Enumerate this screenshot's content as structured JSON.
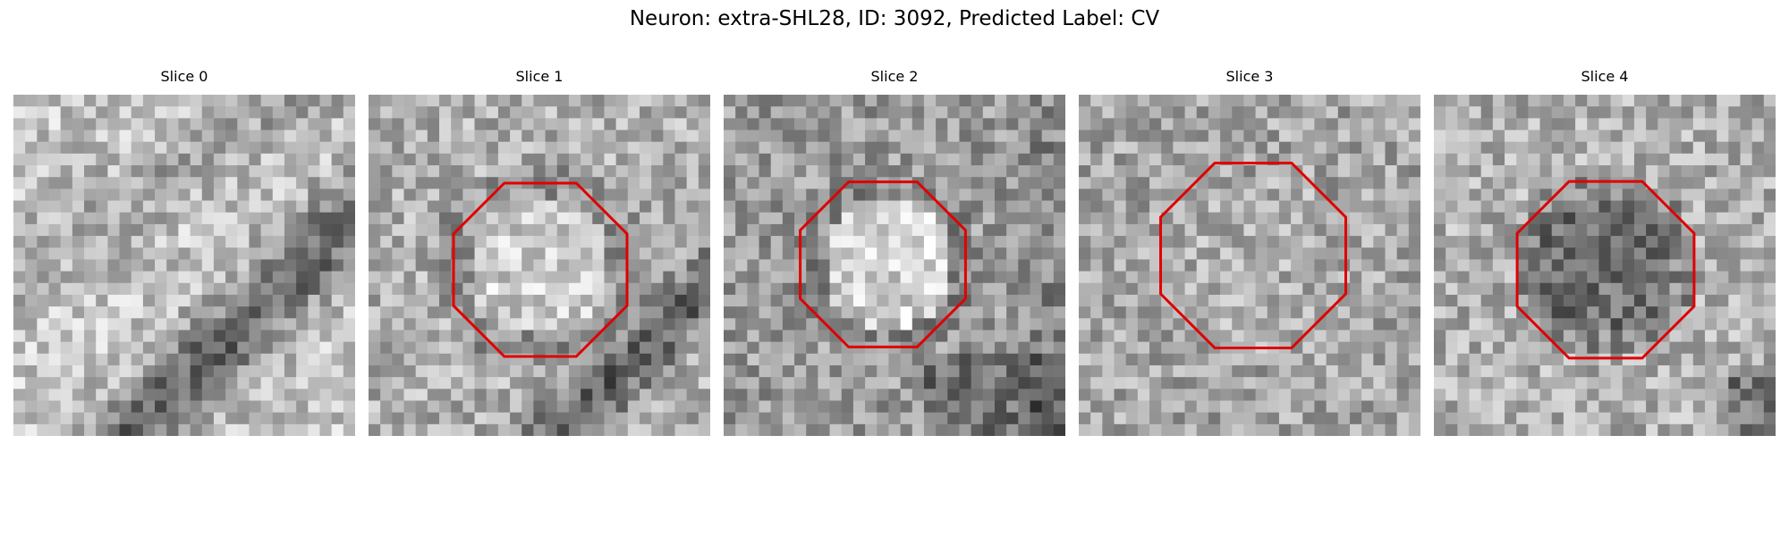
{
  "figure": {
    "title": "Neuron: extra-SHL28, ID: 3092, Predicted Label: CV"
  },
  "outline_color": "#e00000",
  "panels": [
    {
      "title": "Slice 0",
      "outline": false,
      "seed": 11,
      "features": "diagonal-dark-band"
    },
    {
      "title": "Slice 1",
      "outline": true,
      "seed": 23,
      "features": "bright-vesicle-with-dark-ring"
    },
    {
      "title": "Slice 2",
      "outline": true,
      "seed": 37,
      "features": "bright-vesicle-dark-surround"
    },
    {
      "title": "Slice 3",
      "outline": true,
      "seed": 51,
      "features": "noisy-texture"
    },
    {
      "title": "Slice 4",
      "outline": true,
      "seed": 67,
      "features": "dark-vesicle-core"
    }
  ]
}
